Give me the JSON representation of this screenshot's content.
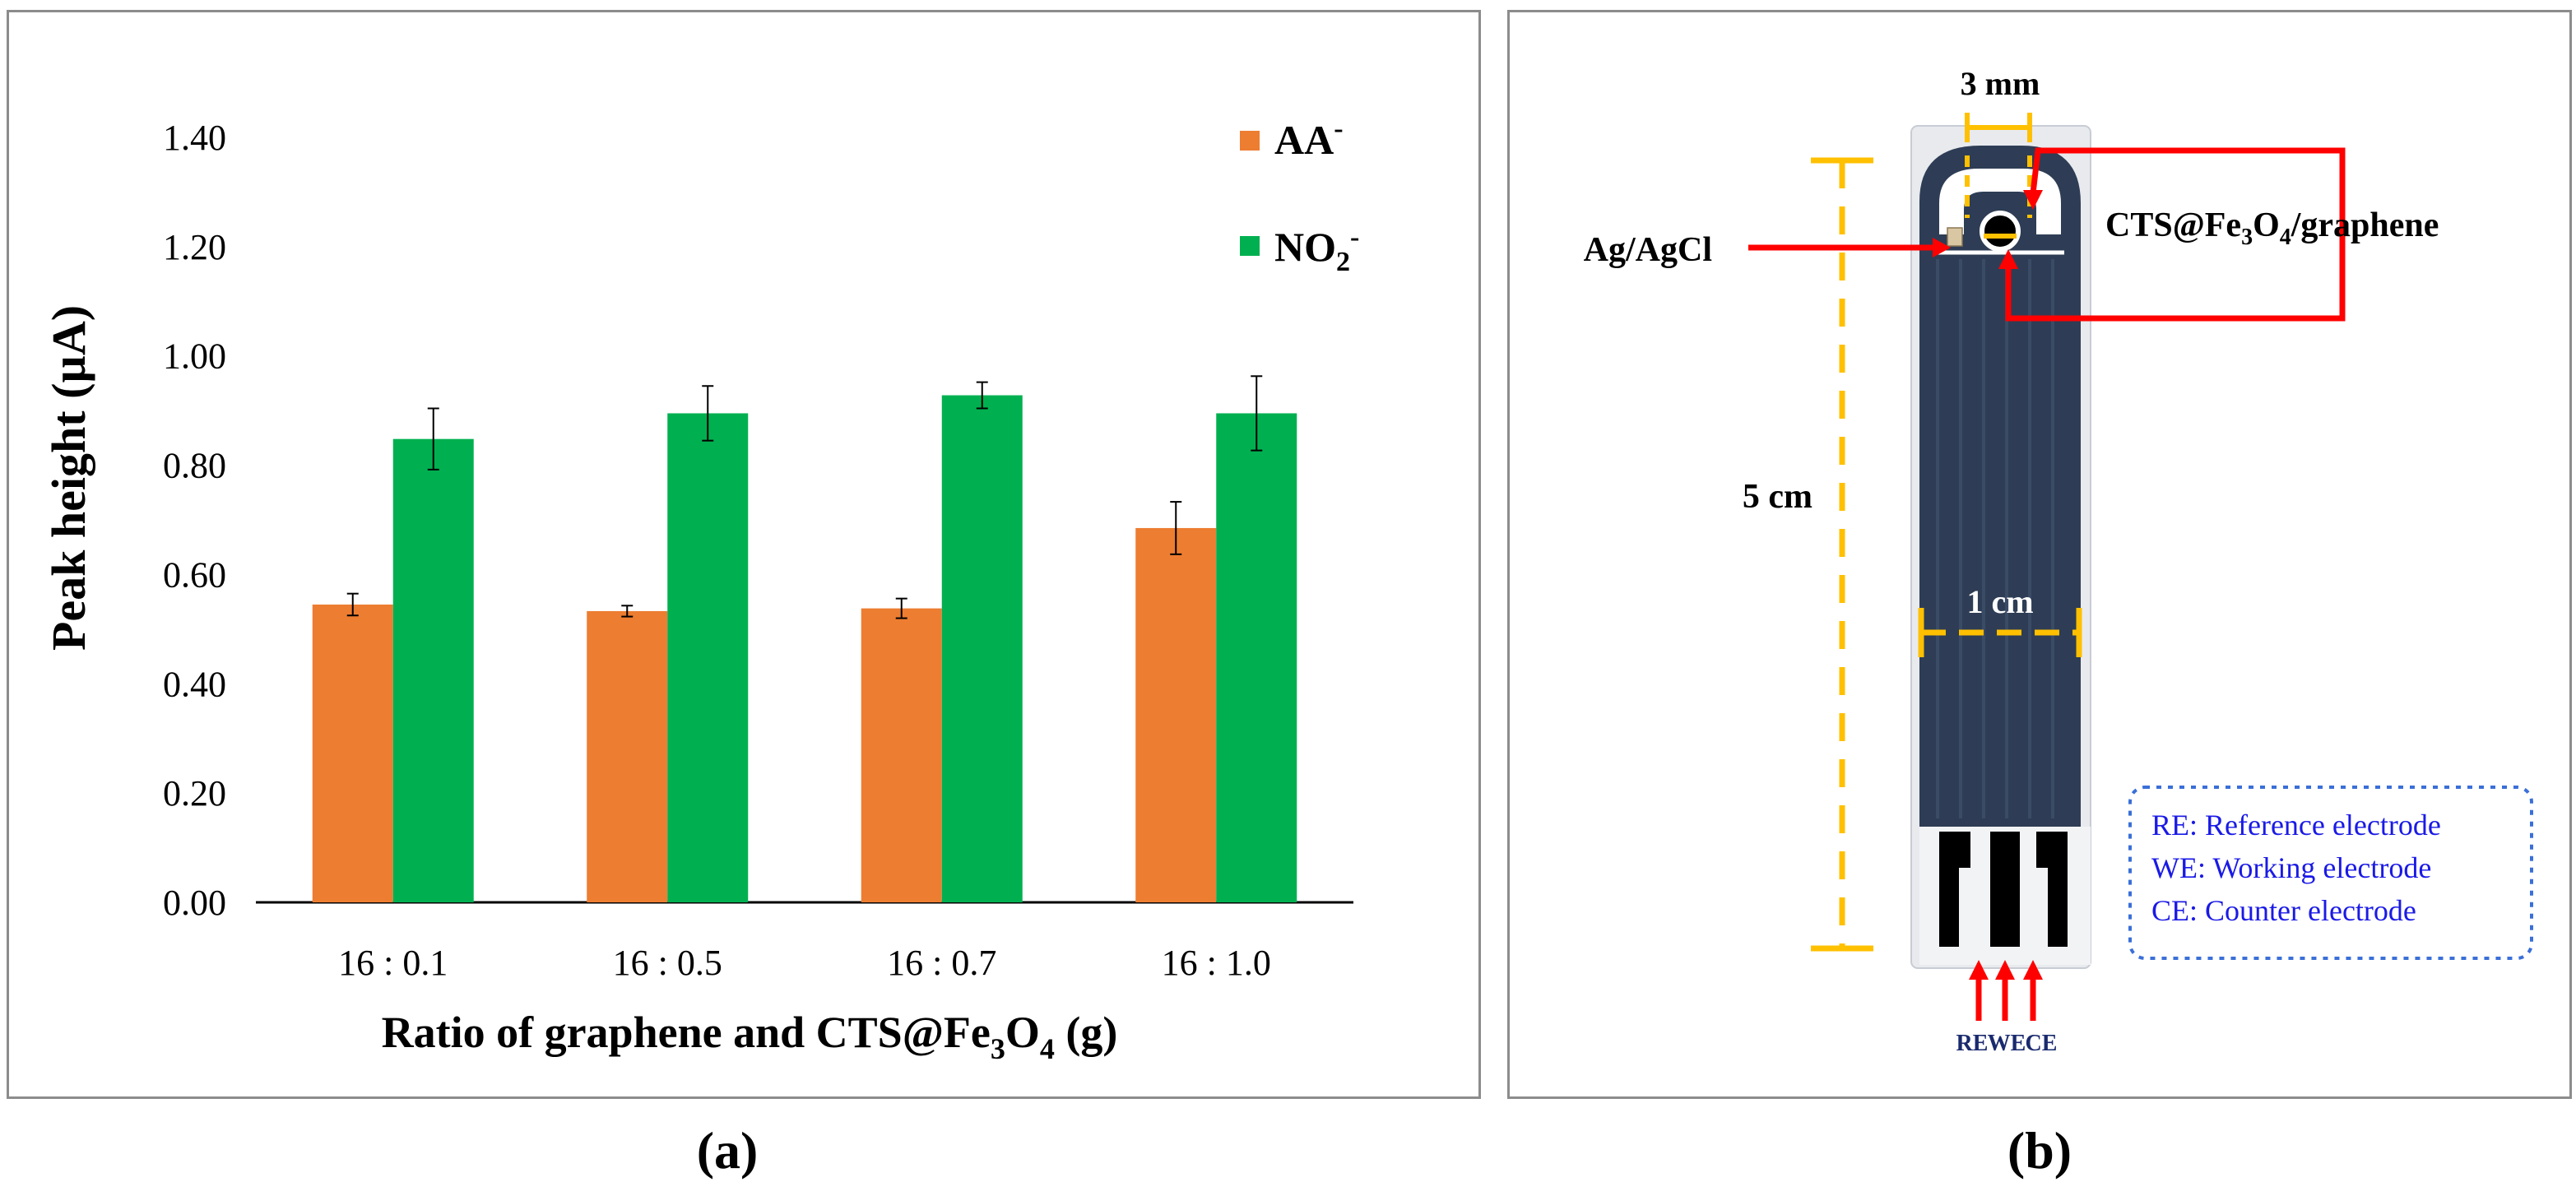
{
  "figure": {
    "panel_a_label": "(a)",
    "panel_b_label": "(b)"
  },
  "chart_data": {
    "type": "bar",
    "xlabel": "Ratio of graphene and  CTS@Fe",
    "xlabel_sub": "3",
    "xlabel_mid": "O",
    "xlabel_sub2": "4",
    "xlabel_end": " (g)",
    "ylabel": "Peak height (µA)",
    "ylim": [
      0,
      1.4
    ],
    "yticks": [
      "0.00",
      "0.20",
      "0.40",
      "0.60",
      "0.80",
      "1.00",
      "1.20",
      "1.40"
    ],
    "categories": [
      "16 : 0.1",
      "16 : 0.5",
      "16 : 0.7",
      "16 : 1.0"
    ],
    "legend_position": "top-right",
    "series": [
      {
        "name": "AA",
        "name_sup": "-",
        "color": "#ED7D31",
        "values": [
          0.545,
          0.533,
          0.538,
          0.685
        ],
        "errors": [
          0.02,
          0.01,
          0.018,
          0.048
        ]
      },
      {
        "name": "NO",
        "name_sub": "2",
        "name_sup": "-",
        "color": "#00B050",
        "values": [
          0.848,
          0.895,
          0.928,
          0.895
        ],
        "errors": [
          0.056,
          0.05,
          0.024,
          0.068
        ]
      }
    ]
  },
  "panel_b": {
    "dim_width_top": "3 mm",
    "dim_length": "5 cm",
    "dim_width": "1 cm",
    "label_ref": "Ag/AgCl",
    "label_work_pre": "CTS@Fe",
    "label_work_sub1": "3",
    "label_work_mid": "O",
    "label_work_sub2": "4",
    "label_work_post": "/graphene",
    "pin_re": "RE",
    "pin_we": "WE",
    "pin_ce": "CE",
    "legend_lines": [
      "RE:  Reference electrode",
      "WE: Working electrode",
      "CE:  Counter electrode"
    ],
    "colors": {
      "orange": "#FFC000",
      "red": "#FF0000",
      "strip": "#2E3D55",
      "blue": "#1A1AE6"
    }
  }
}
